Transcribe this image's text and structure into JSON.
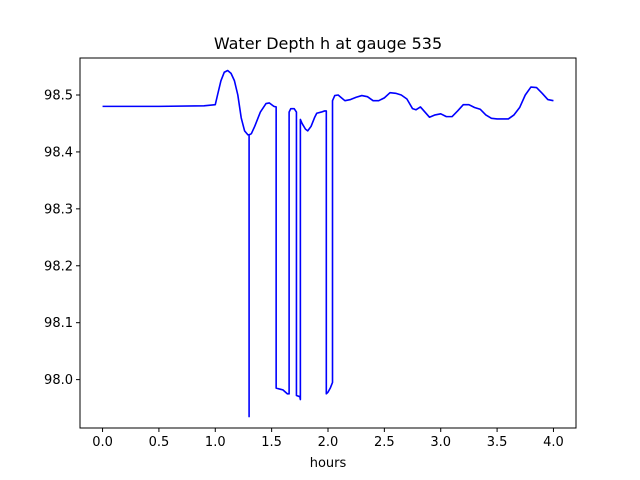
{
  "chart_data": {
    "type": "line",
    "title": "Water Depth h at gauge 535",
    "xlabel": "hours",
    "ylabel": "",
    "xlim": [
      -0.2,
      4.2
    ],
    "ylim": [
      97.915,
      98.565
    ],
    "xticks": [
      0.0,
      0.5,
      1.0,
      1.5,
      2.0,
      2.5,
      3.0,
      3.5,
      4.0
    ],
    "xtick_labels": [
      "0.0",
      "0.5",
      "1.0",
      "1.5",
      "2.0",
      "2.5",
      "3.0",
      "3.5",
      "4.0"
    ],
    "yticks": [
      98.0,
      98.1,
      98.2,
      98.3,
      98.4,
      98.5
    ],
    "ytick_labels": [
      "98.0",
      "98.1",
      "98.2",
      "98.3",
      "98.4",
      "98.5"
    ],
    "grid": false,
    "legend": "none",
    "series": [
      {
        "color": "#0000ff",
        "x": [
          0.0,
          0.5,
          0.9,
          1.0,
          1.02,
          1.05,
          1.08,
          1.11,
          1.14,
          1.17,
          1.2,
          1.23,
          1.26,
          1.29,
          1.3,
          1.3,
          1.3,
          1.32,
          1.35,
          1.4,
          1.45,
          1.48,
          1.52,
          1.54,
          1.54,
          1.58,
          1.6,
          1.64,
          1.655,
          1.655,
          1.67,
          1.7,
          1.72,
          1.72,
          1.75,
          1.755,
          1.755,
          1.77,
          1.8,
          1.82,
          1.85,
          1.88,
          1.9,
          1.94,
          1.97,
          1.98,
          1.985,
          1.985,
          2.0,
          2.02,
          2.04,
          2.04,
          2.06,
          2.09,
          2.12,
          2.15,
          2.2,
          2.25,
          2.3,
          2.35,
          2.4,
          2.45,
          2.5,
          2.55,
          2.6,
          2.65,
          2.7,
          2.75,
          2.78,
          2.82,
          2.86,
          2.9,
          2.95,
          3.0,
          3.05,
          3.1,
          3.15,
          3.2,
          3.25,
          3.3,
          3.35,
          3.4,
          3.45,
          3.5,
          3.55,
          3.6,
          3.65,
          3.7,
          3.75,
          3.8,
          3.85,
          3.9,
          3.95,
          4.0
        ],
        "y": [
          98.48,
          98.48,
          98.481,
          98.483,
          98.5,
          98.525,
          98.54,
          98.543,
          98.538,
          98.525,
          98.5,
          98.46,
          98.437,
          98.43,
          98.43,
          97.935,
          98.43,
          98.432,
          98.445,
          98.47,
          98.485,
          98.486,
          98.48,
          98.479,
          97.985,
          97.983,
          97.982,
          97.975,
          97.975,
          98.47,
          98.476,
          98.476,
          98.47,
          97.972,
          97.97,
          97.965,
          98.457,
          98.45,
          98.44,
          98.437,
          98.445,
          98.46,
          98.468,
          98.47,
          98.472,
          98.472,
          98.472,
          97.975,
          97.978,
          97.985,
          97.995,
          98.49,
          98.499,
          98.5,
          98.495,
          98.49,
          98.492,
          98.496,
          98.499,
          98.497,
          98.49,
          98.49,
          98.495,
          98.504,
          98.503,
          98.5,
          98.493,
          98.476,
          98.474,
          98.479,
          98.47,
          98.461,
          98.465,
          98.467,
          98.462,
          98.462,
          98.472,
          98.483,
          98.483,
          98.478,
          98.475,
          98.465,
          98.459,
          98.458,
          98.458,
          98.458,
          98.465,
          98.478,
          98.5,
          98.514,
          98.513,
          98.503,
          98.492,
          98.49
        ]
      }
    ]
  }
}
